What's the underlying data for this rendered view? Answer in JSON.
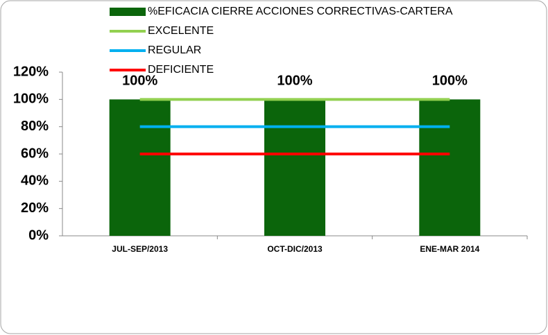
{
  "chart_data": {
    "type": "bar",
    "categories": [
      "JUL-SEP/2013",
      "OCT-DIC/2013",
      "ENE-MAR 2014"
    ],
    "series": [
      {
        "name": "%EFICACIA CIERRE ACCIONES CORRECTIVAS-CARTERA",
        "type": "bar",
        "color": "#0b650b",
        "values": [
          100,
          100,
          100
        ],
        "value_labels": [
          "100%",
          "100%",
          "100%"
        ]
      },
      {
        "name": "EXCELENTE",
        "type": "line",
        "color": "#92d050",
        "values": [
          100,
          100,
          100
        ]
      },
      {
        "name": "REGULAR",
        "type": "line",
        "color": "#00b0f0",
        "values": [
          80,
          80,
          80
        ]
      },
      {
        "name": "DEFICIENTE",
        "type": "line",
        "color": "#ff0000",
        "values": [
          60,
          60,
          60
        ]
      }
    ],
    "ylim": [
      0,
      120
    ],
    "yticks": [
      {
        "value": 0,
        "label": "0%"
      },
      {
        "value": 20,
        "label": "20%"
      },
      {
        "value": 40,
        "label": "40%"
      },
      {
        "value": 60,
        "label": "60%"
      },
      {
        "value": 80,
        "label": "80%"
      },
      {
        "value": 100,
        "label": "100%"
      },
      {
        "value": 120,
        "label": "120%"
      }
    ],
    "legend": "top"
  }
}
